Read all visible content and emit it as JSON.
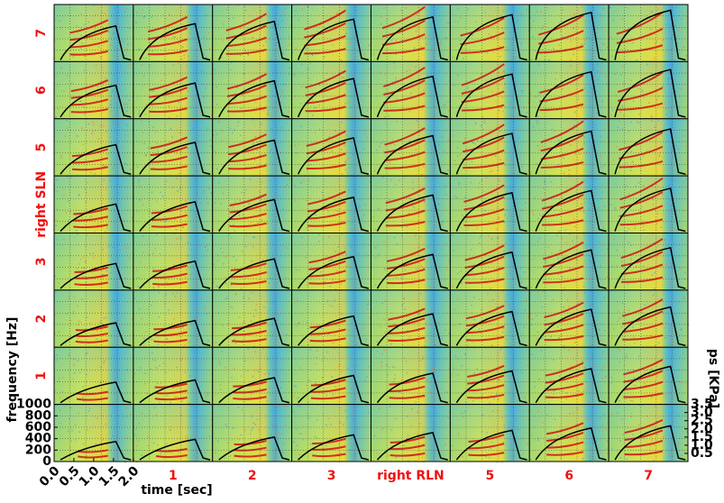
{
  "chart_data": {
    "type": "spectrogram-grid",
    "row_labels": [
      "7",
      "6",
      "5",
      "right SLN",
      "3",
      "2",
      "1",
      null
    ],
    "column_labels": [
      null,
      "1",
      "2",
      "3",
      "right RLN",
      "5",
      "6",
      "7"
    ],
    "xlabel": "time [sec]",
    "ylabel": "frequency [Hz]",
    "y2label": "ps [KPa]",
    "xlim": [
      0,
      2
    ],
    "xticks": [
      {
        "value": 0,
        "label": "0.0"
      },
      {
        "value": 0.5,
        "label": "0.5"
      },
      {
        "value": 1,
        "label": "1.0"
      },
      {
        "value": 1.5,
        "label": "1.5"
      },
      {
        "value": 2,
        "label": "2.0"
      }
    ],
    "ylim": [
      0,
      1000
    ],
    "yticks": [
      0,
      200,
      400,
      600,
      800,
      1000
    ],
    "y2lim": [
      0,
      3.5
    ],
    "y2ticks": [
      {
        "value": 0.5,
        "label": "0.5"
      },
      {
        "value": 1,
        "label": "1.0"
      },
      {
        "value": 1.5,
        "label": "1.5"
      },
      {
        "value": 2,
        "label": "2.0"
      },
      {
        "value": 2.5,
        "label": "2.5"
      },
      {
        "value": 3,
        "label": "3.0"
      },
      {
        "value": 3.5,
        "label": "3.5"
      }
    ]
  }
}
